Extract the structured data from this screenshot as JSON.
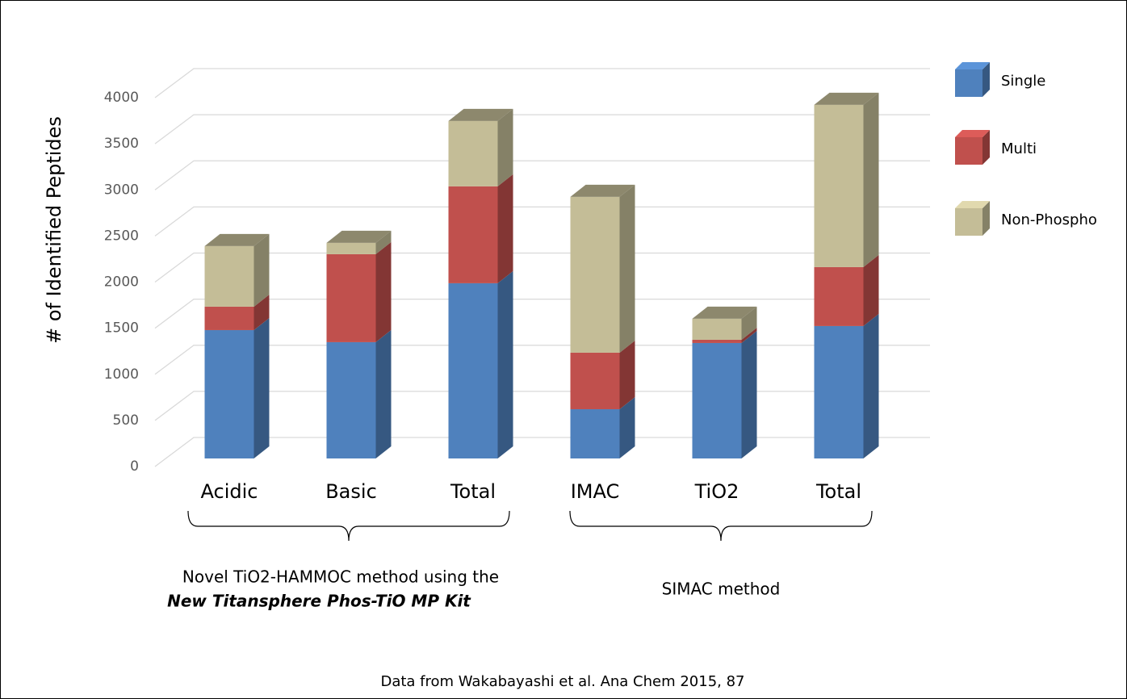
{
  "chart_data": {
    "type": "bar",
    "stacked": true,
    "ylabel": "# of Identified Peptides",
    "categories": [
      "Acidic",
      "Basic",
      "Total",
      "IMAC",
      "TiO2",
      "Total"
    ],
    "series": [
      {
        "name": "Single",
        "color": "#4f81bd",
        "values": [
          1392,
          1261,
          1900,
          534,
          1252,
          1436
        ]
      },
      {
        "name": "Multi",
        "color": "#c0504d",
        "values": [
          254,
          954,
          1051,
          613,
          35,
          639
        ]
      },
      {
        "name": "Non-Phospho",
        "color": "#c4bd97",
        "values": [
          657,
          123,
          709,
          1690,
          228,
          1760
        ]
      }
    ],
    "ylim": [
      0,
      4000
    ],
    "yticks": [
      0,
      500,
      1000,
      1500,
      2000,
      2500,
      3000,
      3500,
      4000
    ],
    "grid": true,
    "group_labels": [
      [
        "Novel TiO2-HAMMOC method using the",
        "New Titansphere Phos-TiO MP Kit"
      ],
      [
        "SIMAC method"
      ]
    ],
    "source": "Data from Wakabayashi et al. Ana Chem 2015, 87"
  }
}
